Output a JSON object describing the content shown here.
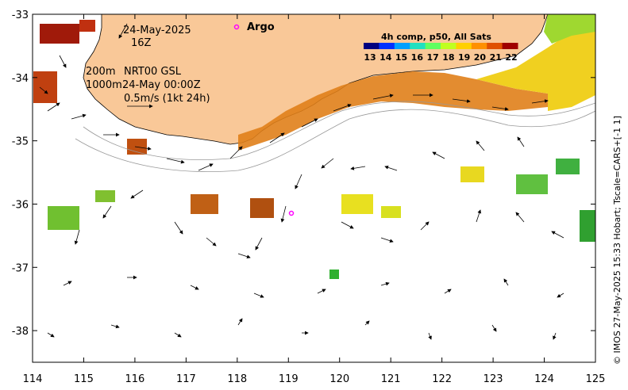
{
  "map": {
    "lon_ticks": [
      "114",
      "115",
      "116",
      "117",
      "118",
      "119",
      "120",
      "121",
      "122",
      "123",
      "124",
      "125"
    ],
    "lat_ticks": [
      "-33",
      "-34",
      "-35",
      "-36",
      "-37",
      "-38"
    ],
    "lon_range": [
      114,
      125
    ],
    "lat_range": [
      -38.5,
      -33
    ]
  },
  "annotations": {
    "date": "24-May-2025",
    "time": "16Z",
    "depth_200": "200m",
    "depth_1000": "1000m",
    "model": "NRT00 GSL",
    "model_time": "24-May 00:00Z",
    "arrow_scale": "0.5m/s (1kt 24h)",
    "argo_label": "Argo"
  },
  "colorbar": {
    "title": "4h comp, p50, All Sats",
    "ticks": [
      "13",
      "14",
      "15",
      "16",
      "17",
      "18",
      "19",
      "20",
      "21",
      "22"
    ],
    "colors": [
      "#00007f",
      "#0030ff",
      "#00a0ff",
      "#20e0c0",
      "#60ff60",
      "#c0ff20",
      "#ffd000",
      "#ff9000",
      "#e05000",
      "#a00000"
    ]
  },
  "credit": "© IMOS 27-May-2025 15:33 Hobart; Tscale=CARS+[-1 1]",
  "style": {
    "land": "#f9c898",
    "argo_marker": "#ff00ff"
  }
}
